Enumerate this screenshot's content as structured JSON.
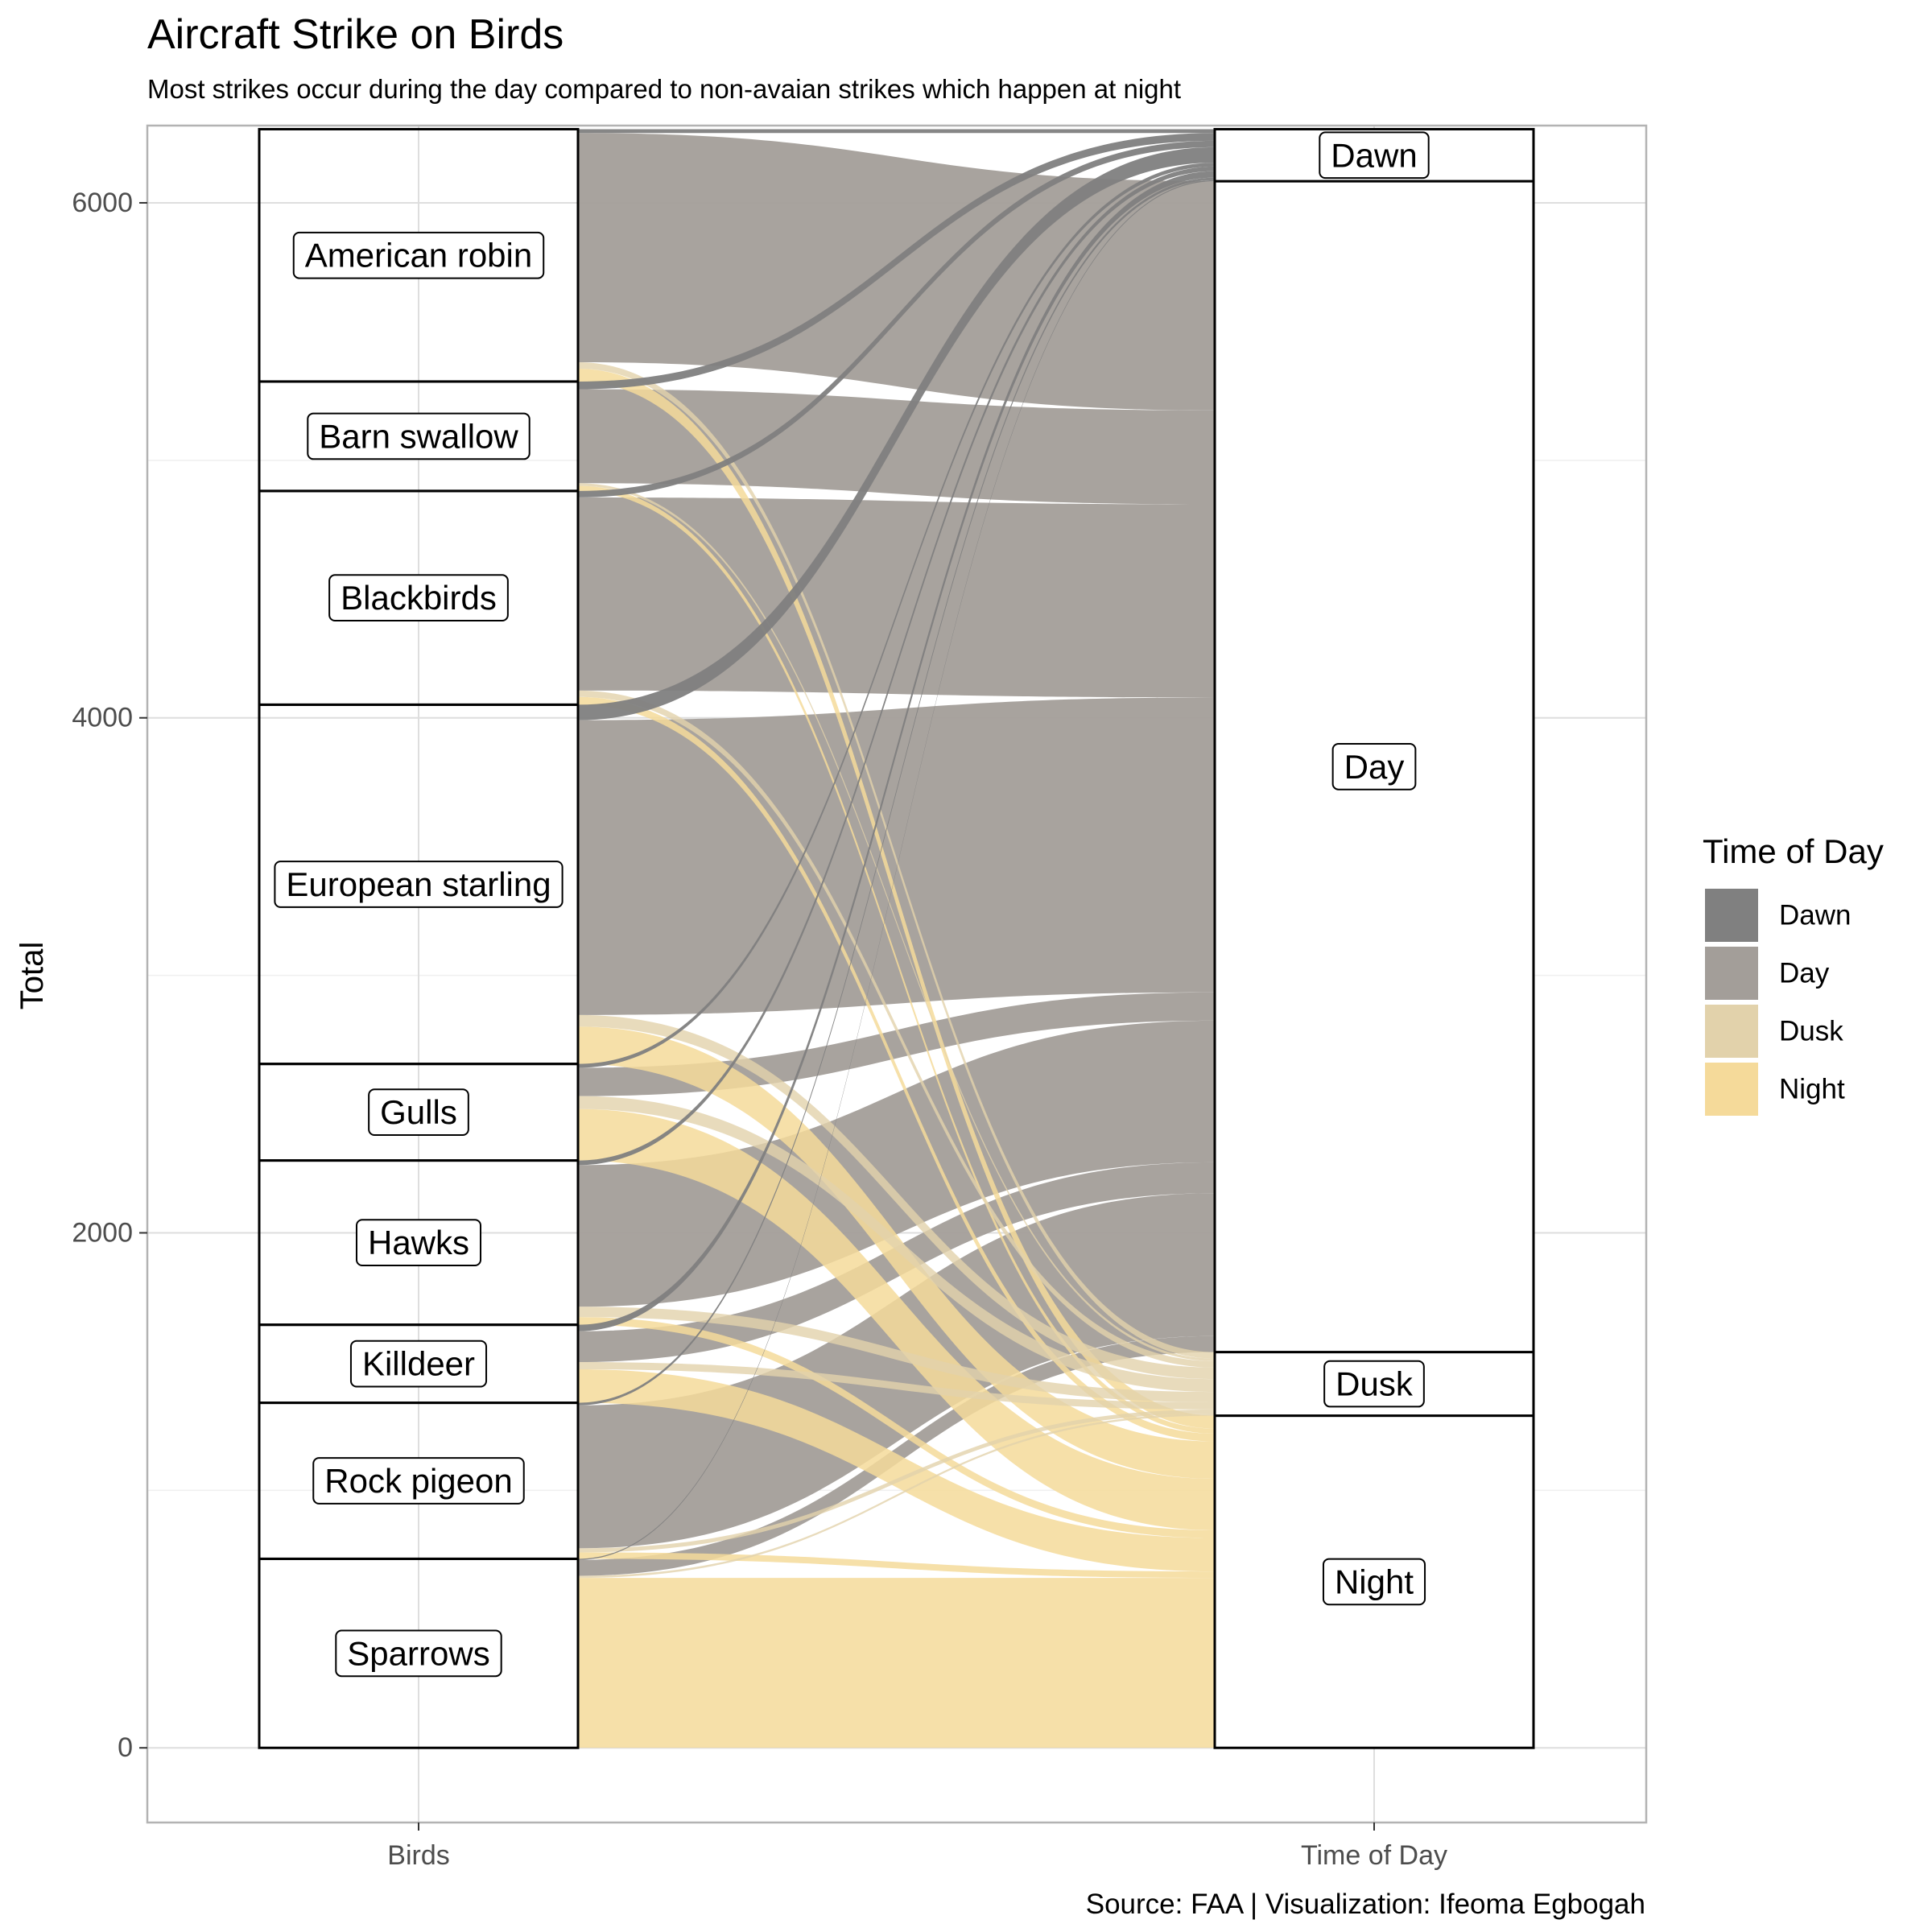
{
  "chart_data": {
    "type": "alluvial",
    "title": "Aircraft Strike on Birds",
    "subtitle": "Most strikes occur during the day compared to non-avaian strikes which happen at night",
    "caption": "Source: FAA | Visualization: Ifeoma Egbogah",
    "ylabel": "Total",
    "xlabel": "",
    "x_categories": [
      "Birds",
      "Time of Day"
    ],
    "y_ticks": [
      0,
      2000,
      4000,
      6000
    ],
    "ylim": [
      -290,
      6300
    ],
    "grid": true,
    "legend": {
      "title": "Time of Day",
      "position": "right",
      "entries": [
        "Dawn",
        "Day",
        "Dusk",
        "Night"
      ]
    },
    "colors": {
      "Dawn": "#808080",
      "Day": "#a39e99",
      "Dusk": "#e2d2ab",
      "Night": "#f5da9a"
    },
    "birds": [
      {
        "name": "Sparrows",
        "Dawn": 4,
        "Day": 62,
        "Dusk": 8,
        "Night": 660
      },
      {
        "name": "Rock pigeon",
        "Dawn": 10,
        "Day": 555,
        "Dusk": 16,
        "Night": 25
      },
      {
        "name": "Killdeer",
        "Dawn": 25,
        "Day": 120,
        "Dusk": 28,
        "Night": 130
      },
      {
        "name": "Hawks",
        "Dawn": 18,
        "Day": 550,
        "Dusk": 40,
        "Night": 30
      },
      {
        "name": "Gulls",
        "Dawn": 15,
        "Day": 110,
        "Dusk": 50,
        "Night": 200
      },
      {
        "name": "European starling",
        "Dawn": 60,
        "Day": 1145,
        "Dusk": 45,
        "Night": 145
      },
      {
        "name": "Blackbirds",
        "Dawn": 25,
        "Day": 750,
        "Dusk": 25,
        "Night": 30
      },
      {
        "name": "Barn swallow",
        "Dawn": 30,
        "Day": 365,
        "Dusk": 10,
        "Night": 20
      },
      {
        "name": "American robin",
        "Dawn": 15,
        "Day": 890,
        "Dusk": 25,
        "Night": 50
      }
    ]
  }
}
